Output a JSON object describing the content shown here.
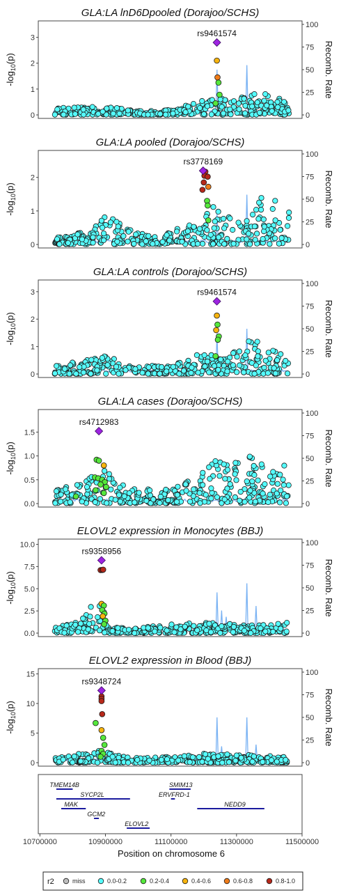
{
  "chart_data": [
    {
      "type": "scatter",
      "title": "GLA:LA lnD6Dpooled (Dorajoo/SCHS)",
      "lead_snp": "rs9461574",
      "ylim": [
        0,
        3.5
      ],
      "yticks": [
        "0",
        "1",
        "2",
        "3"
      ],
      "y2ticks": [
        "0",
        "25",
        "50",
        "75",
        "100"
      ],
      "lead_point": {
        "x": 11240000,
        "y": 2.8
      },
      "ld_points": [
        {
          "x": 11240000,
          "y": 2.1,
          "r2": "0.4-0.6"
        },
        {
          "x": 11242000,
          "y": 1.45,
          "r2": "0.6-0.8"
        },
        {
          "x": 11245000,
          "y": 1.25,
          "r2": "0.2-0.4"
        },
        {
          "x": 11248000,
          "y": 0.78,
          "r2": "0.2-0.4"
        },
        {
          "x": 11236000,
          "y": 0.45,
          "r2": "0.2-0.4"
        }
      ],
      "bg_seed": 1,
      "bg_profile": [
        [
          10740000,
          0.3
        ],
        [
          10900000,
          0.35
        ],
        [
          10990000,
          0.15
        ],
        [
          11100000,
          0.2
        ],
        [
          11180000,
          0.5
        ],
        [
          11230000,
          0.7
        ],
        [
          11300000,
          0.6
        ],
        [
          11360000,
          0.9
        ],
        [
          11400000,
          0.8
        ],
        [
          11460000,
          0.5
        ]
      ],
      "recomb_spikes": [
        [
          11240000,
          50
        ],
        [
          11330000,
          55
        ]
      ]
    },
    {
      "type": "scatter",
      "title": "GLA:LA pooled (Dorajoo/SCHS)",
      "lead_snp": "rs3778169",
      "ylim": [
        0,
        2.7
      ],
      "yticks": [
        "0",
        "1",
        "2"
      ],
      "y2ticks": [
        "0",
        "25",
        "50",
        "75",
        "100"
      ],
      "lead_point": {
        "x": 11198000,
        "y": 2.2
      },
      "ld_points": [
        {
          "x": 11205000,
          "y": 2.17,
          "r2": "0.8-1.0"
        },
        {
          "x": 11202000,
          "y": 2.05,
          "r2": "0.8-1.0"
        },
        {
          "x": 11212000,
          "y": 2.02,
          "r2": "0.8-1.0"
        },
        {
          "x": 11200000,
          "y": 1.85,
          "r2": "0.8-1.0"
        },
        {
          "x": 11214000,
          "y": 1.72,
          "r2": "0.6-0.8"
        },
        {
          "x": 11196000,
          "y": 1.63,
          "r2": "0.8-1.0"
        },
        {
          "x": 11210000,
          "y": 1.3,
          "r2": "0.2-0.4"
        },
        {
          "x": 11212000,
          "y": 1.16,
          "r2": "0.2-0.4"
        },
        {
          "x": 11214000,
          "y": 0.72,
          "r2": "0.2-0.4"
        }
      ],
      "bg_seed": 2,
      "bg_profile": [
        [
          10740000,
          0.2
        ],
        [
          10850000,
          0.4
        ],
        [
          10900000,
          1.0
        ],
        [
          10960000,
          0.5
        ],
        [
          11060000,
          0.2
        ],
        [
          11150000,
          0.6
        ],
        [
          11230000,
          1.2
        ],
        [
          11320000,
          0.6
        ],
        [
          11360000,
          1.5
        ],
        [
          11420000,
          1.3
        ],
        [
          11460000,
          1.0
        ]
      ],
      "recomb_spikes": [
        [
          11240000,
          35
        ],
        [
          11330000,
          55
        ]
      ]
    },
    {
      "type": "scatter",
      "title": "GLA:LA controls (Dorajoo/SCHS)",
      "lead_snp": "rs9461574",
      "ylim": [
        0,
        3.3
      ],
      "yticks": [
        "0",
        "1",
        "2",
        "3"
      ],
      "y2ticks": [
        "0",
        "25",
        "50",
        "75",
        "100"
      ],
      "lead_point": {
        "x": 11240000,
        "y": 2.65
      },
      "ld_points": [
        {
          "x": 11240000,
          "y": 2.13,
          "r2": "0.4-0.6"
        },
        {
          "x": 11242000,
          "y": 1.8,
          "r2": "0.2-0.4"
        },
        {
          "x": 11238000,
          "y": 1.6,
          "r2": "0.4-0.6"
        },
        {
          "x": 11246000,
          "y": 1.37,
          "r2": "0.2-0.4"
        },
        {
          "x": 11243000,
          "y": 1.25,
          "r2": "0.2-0.4"
        },
        {
          "x": 11236000,
          "y": 0.65,
          "r2": "0.2-0.4"
        }
      ],
      "bg_seed": 3,
      "bg_profile": [
        [
          10740000,
          0.3
        ],
        [
          10900000,
          0.7
        ],
        [
          10990000,
          0.3
        ],
        [
          11100000,
          0.3
        ],
        [
          11200000,
          0.8
        ],
        [
          11260000,
          0.6
        ],
        [
          11340000,
          1.4
        ],
        [
          11400000,
          1.0
        ],
        [
          11460000,
          0.6
        ]
      ],
      "recomb_spikes": [
        [
          11240000,
          45
        ],
        [
          11330000,
          50
        ]
      ]
    },
    {
      "type": "scatter",
      "title": "GLA:LA cases (Dorajoo/SCHS)",
      "lead_snp": "rs4712983",
      "ylim": [
        0,
        1.9
      ],
      "yticks": [
        "0.0",
        "0.5",
        "1.0",
        "1.5"
      ],
      "y2ticks": [
        "0",
        "25",
        "50",
        "75",
        "100"
      ],
      "lead_point": {
        "x": 10880000,
        "y": 1.52
      },
      "ld_points": [
        {
          "x": 10873000,
          "y": 0.92,
          "r2": "0.2-0.4"
        },
        {
          "x": 10880000,
          "y": 0.9,
          "r2": "0.2-0.4"
        },
        {
          "x": 10895000,
          "y": 0.8,
          "r2": "0.4-0.6"
        },
        {
          "x": 10868000,
          "y": 0.55,
          "r2": "0.2-0.4"
        },
        {
          "x": 10878000,
          "y": 0.53,
          "r2": "0.2-0.4"
        },
        {
          "x": 10890000,
          "y": 0.5,
          "r2": "0.2-0.4"
        },
        {
          "x": 10898000,
          "y": 0.45,
          "r2": "0.2-0.4"
        },
        {
          "x": 10885000,
          "y": 0.4,
          "r2": "0.2-0.4"
        },
        {
          "x": 10902000,
          "y": 0.35,
          "r2": "0.2-0.4"
        },
        {
          "x": 10870000,
          "y": 0.28,
          "r2": "0.2-0.4"
        },
        {
          "x": 10895000,
          "y": 0.22,
          "r2": "0.2-0.4"
        },
        {
          "x": 10810000,
          "y": 0.15,
          "r2": "0.2-0.4"
        }
      ],
      "bg_seed": 4,
      "bg_profile": [
        [
          10740000,
          0.25
        ],
        [
          10900000,
          0.7
        ],
        [
          10960000,
          0.35
        ],
        [
          11080000,
          0.3
        ],
        [
          11150000,
          0.5
        ],
        [
          11230000,
          1.1
        ],
        [
          11290000,
          0.8
        ],
        [
          11320000,
          1.15
        ],
        [
          11360000,
          0.9
        ],
        [
          11420000,
          0.7
        ],
        [
          11460000,
          1.2
        ]
      ],
      "recomb_spikes": []
    },
    {
      "type": "scatter",
      "title": "ELOVL2 expression in Monocytes (BBJ)",
      "lead_snp": "rs9358956",
      "ylim": [
        0,
        10.2
      ],
      "yticks": [
        "0.0",
        "2.5",
        "5.0",
        "7.5",
        "10.0"
      ],
      "y2ticks": [
        "0",
        "25",
        "50",
        "75",
        "100"
      ],
      "lead_point": {
        "x": 10888000,
        "y": 8.2
      },
      "ld_points": [
        {
          "x": 10885000,
          "y": 7.1,
          "r2": "0.8-1.0"
        },
        {
          "x": 10890000,
          "y": 7.12,
          "r2": "0.8-1.0"
        },
        {
          "x": 10893000,
          "y": 7.15,
          "r2": "0.8-1.0"
        },
        {
          "x": 10888000,
          "y": 3.3,
          "r2": "0.4-0.6"
        },
        {
          "x": 10895000,
          "y": 3.1,
          "r2": "0.2-0.4"
        },
        {
          "x": 10890000,
          "y": 2.6,
          "r2": "0.2-0.4"
        },
        {
          "x": 10897000,
          "y": 2.2,
          "r2": "0.2-0.4"
        },
        {
          "x": 10892000,
          "y": 1.9,
          "r2": "0.4-0.6"
        },
        {
          "x": 10900000,
          "y": 1.4,
          "r2": "0.2-0.4"
        },
        {
          "x": 10896000,
          "y": 1.0,
          "r2": "0.2-0.4"
        }
      ],
      "bg_seed": 5,
      "bg_profile": [
        [
          10740000,
          0.5
        ],
        [
          10840000,
          2.0
        ],
        [
          10870000,
          4.0
        ],
        [
          10890000,
          3.0
        ],
        [
          10910000,
          1.0
        ],
        [
          10960000,
          0.5
        ],
        [
          11100000,
          1.0
        ],
        [
          11200000,
          1.2
        ],
        [
          11300000,
          1.0
        ],
        [
          11400000,
          0.9
        ],
        [
          11460000,
          1.5
        ]
      ],
      "recomb_spikes": [
        [
          11240000,
          45
        ],
        [
          11255000,
          25
        ],
        [
          11270000,
          18
        ],
        [
          11330000,
          55
        ],
        [
          11360000,
          30
        ]
      ]
    },
    {
      "type": "scatter",
      "title": "ELOVL2 expression in Blood (BBJ)",
      "lead_snp": "rs9348724",
      "ylim": [
        0,
        15.3
      ],
      "yticks": [
        "0",
        "5",
        "10",
        "15"
      ],
      "y2ticks": [
        "0",
        "25",
        "50",
        "75",
        "100"
      ],
      "lead_point": {
        "x": 10888000,
        "y": 12.2
      },
      "ld_points": [
        {
          "x": 10888000,
          "y": 11.2,
          "r2": "0.8-1.0"
        },
        {
          "x": 10888000,
          "y": 10.8,
          "r2": "0.8-1.0"
        },
        {
          "x": 10888000,
          "y": 10.4,
          "r2": "0.8-1.0"
        },
        {
          "x": 10890000,
          "y": 8.2,
          "r2": "0.8-1.0"
        },
        {
          "x": 10870000,
          "y": 6.7,
          "r2": "0.2-0.4"
        },
        {
          "x": 10888000,
          "y": 5.5,
          "r2": "0.4-0.6"
        },
        {
          "x": 10893000,
          "y": 4.2,
          "r2": "0.2-0.4"
        },
        {
          "x": 10897000,
          "y": 3.0,
          "r2": "0.2-0.4"
        },
        {
          "x": 10888000,
          "y": 2.0,
          "r2": "0.2-0.4"
        },
        {
          "x": 10893000,
          "y": 1.5,
          "r2": "0.2-0.4"
        },
        {
          "x": 10885000,
          "y": 1.0,
          "r2": "0.2-0.4"
        }
      ],
      "bg_seed": 6,
      "bg_profile": [
        [
          10740000,
          0.7
        ],
        [
          10860000,
          2.2
        ],
        [
          10900000,
          2.0
        ],
        [
          10950000,
          1.0
        ],
        [
          11100000,
          1.0
        ],
        [
          11200000,
          1.6
        ],
        [
          11300000,
          1.4
        ],
        [
          11400000,
          1.2
        ],
        [
          11460000,
          0.9
        ]
      ],
      "recomb_spikes": [
        [
          11240000,
          50
        ],
        [
          11255000,
          18
        ],
        [
          11330000,
          50
        ],
        [
          11360000,
          20
        ]
      ]
    }
  ],
  "axes": {
    "y_label_base": "-log",
    "y_label_sub": "10",
    "y_label_arg": "(p)",
    "y2_label": "Recomb. Rate",
    "x_label": "Position on chromosome 6",
    "x_ticks": [
      "10700000",
      "10900000",
      "11100000",
      "11300000",
      "11500000"
    ],
    "x_tick_values": [
      10700000,
      10900000,
      11100000,
      11300000,
      11500000
    ],
    "x_range": [
      10695000,
      11500000
    ]
  },
  "genes": [
    {
      "name": "TMEM14B",
      "start": 10750000,
      "end": 10800000,
      "label_x": 10775000,
      "row": 0
    },
    {
      "name": "SYCP2L",
      "start": 10750000,
      "end": 10975000,
      "label_x": 10860000,
      "row": 1
    },
    {
      "name": "MAK",
      "start": 10765000,
      "end": 10840000,
      "label_x": 10795000,
      "row": 2
    },
    {
      "name": "GCM2",
      "start": 10865000,
      "end": 10880000,
      "label_x": 10872000,
      "row": 3
    },
    {
      "name": "ELOVL2",
      "start": 10965000,
      "end": 11035000,
      "label_x": 10995000,
      "row": 4
    },
    {
      "name": "SMIM13",
      "start": 11095000,
      "end": 11160000,
      "label_x": 11130000,
      "row": 0
    },
    {
      "name": "ERVFRD-1",
      "start": 11100000,
      "end": 11112000,
      "label_x": 11110000,
      "row": 1
    },
    {
      "name": "NEDD9",
      "start": 11180000,
      "end": 11385000,
      "label_x": 11295000,
      "row": 2
    }
  ],
  "legend": {
    "title": "r2",
    "items": [
      {
        "label": "miss",
        "color": "#bebebe"
      },
      {
        "label": "0.0-0.2",
        "color": "#55fcfc"
      },
      {
        "label": "0.2-0.4",
        "color": "#55e83c"
      },
      {
        "label": "0.4-0.6",
        "color": "#f7b40e"
      },
      {
        "label": "0.6-0.8",
        "color": "#ef7c1a"
      },
      {
        "label": "0.8-1.0",
        "color": "#b7281a"
      }
    ]
  },
  "colors": {
    "lead": "#9d24e0",
    "recomb": "#6aaaf2",
    "gene": "#1a1a9e",
    "point_outline": "#1a1a1a"
  }
}
